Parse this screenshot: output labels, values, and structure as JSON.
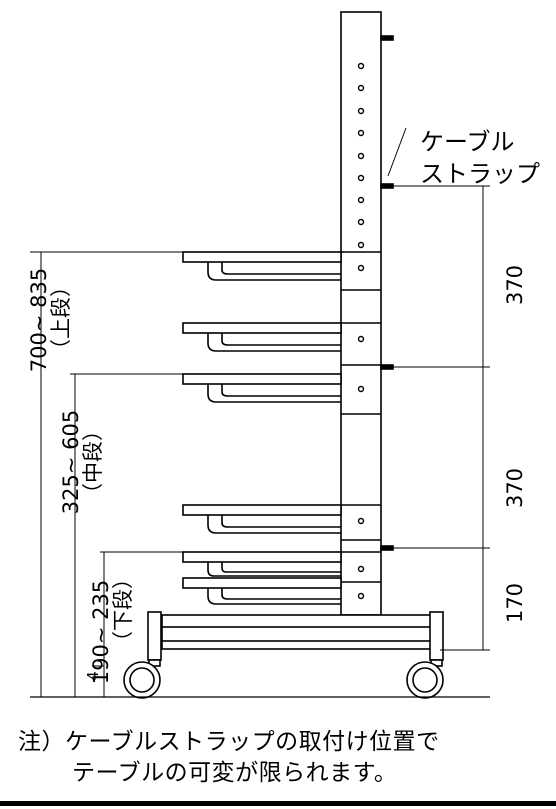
{
  "callout": {
    "line1": "ケーブル",
    "line2": "ストラップ"
  },
  "dimensions": {
    "upper_range": "700~ 835",
    "upper_label": "（上段）",
    "middle_range": "325~ 605",
    "middle_label": "（中段）",
    "lower_range": "190~ 235",
    "lower_label": "（下段）",
    "right_top": "370",
    "right_middle": "370",
    "right_bottom": "170",
    "floor_small": "4"
  },
  "note": {
    "line1": "注）ケーブルストラップの取付け位置で",
    "line2": "テーブルの可変が限られます。"
  }
}
